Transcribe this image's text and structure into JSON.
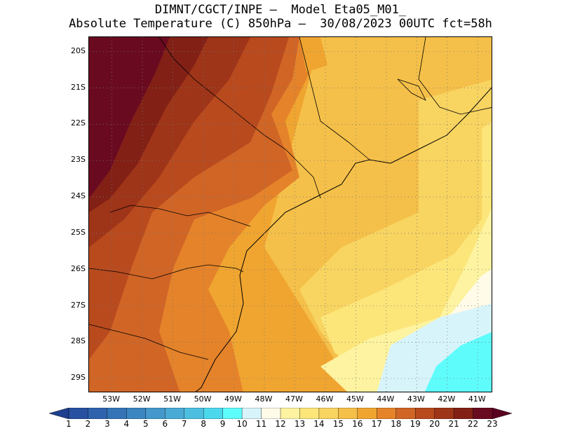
{
  "title": {
    "line1": "DIMNT/CGCT/INPE —  Model Eta05_M01_",
    "line2": "Absolute Temperature (C) 850hPa —  30/08/2023 00UTC fct=58h"
  },
  "map": {
    "lon_range": [
      -53.75,
      -40.5
    ],
    "lat_range": [
      -29.4,
      -19.6
    ],
    "lat_labels": [
      "20S",
      "21S",
      "22S",
      "23S",
      "24S",
      "25S",
      "26S",
      "27S",
      "28S",
      "29S"
    ],
    "lon_labels": [
      "53W",
      "52W",
      "51W",
      "50W",
      "49W",
      "48W",
      "47W",
      "46W",
      "45W",
      "44W",
      "43W",
      "42W",
      "41W"
    ],
    "grid_style": "dotted"
  },
  "colorbar": {
    "labels": [
      "1",
      "2",
      "3",
      "4",
      "5",
      "6",
      "7",
      "8",
      "9",
      "10",
      "11",
      "12",
      "13",
      "14",
      "15",
      "16",
      "17",
      "18",
      "19",
      "20",
      "21",
      "22",
      "23"
    ],
    "colors": [
      "#1f3f8f",
      "#2850a0",
      "#2f62ad",
      "#3474b6",
      "#3b86c0",
      "#4498cb",
      "#4aaad6",
      "#4cbfe0",
      "#4cd8ec",
      "#5ffcfc",
      "#d8f4fb",
      "#fffbe8",
      "#fdf3a0",
      "#fce67a",
      "#f8d461",
      "#f5c049",
      "#f0a530",
      "#e5832a",
      "#d06526",
      "#b84a1e",
      "#9e3418",
      "#822016",
      "#6a0a20",
      "#5a0020"
    ]
  }
}
